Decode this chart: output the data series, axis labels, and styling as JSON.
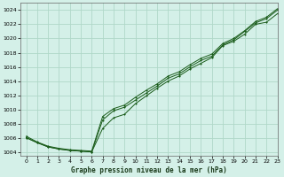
{
  "title": "Graphe pression niveau de la mer (hPa)",
  "bg_color": "#d4f0e8",
  "grid_color": "#b0d8c8",
  "line_color": "#1a5c1a",
  "marker_color": "#1a5c1a",
  "xlim": [
    -0.5,
    23
  ],
  "ylim": [
    1003.5,
    1025.0
  ],
  "xticks": [
    0,
    1,
    2,
    3,
    4,
    5,
    6,
    7,
    8,
    9,
    10,
    11,
    12,
    13,
    14,
    15,
    16,
    17,
    18,
    19,
    20,
    21,
    22,
    23
  ],
  "yticks": [
    1004,
    1006,
    1008,
    1010,
    1012,
    1014,
    1016,
    1018,
    1020,
    1022,
    1024
  ],
  "series1_x": [
    0,
    1,
    2,
    3,
    4,
    5,
    6,
    7,
    8,
    9,
    10,
    11,
    12,
    13,
    14,
    15,
    16,
    17,
    18,
    19,
    20,
    21,
    22,
    23
  ],
  "series1_y": [
    1006.0,
    1005.3,
    1004.7,
    1004.4,
    1004.2,
    1004.1,
    1004.0,
    1007.3,
    1008.8,
    1009.3,
    1010.8,
    1011.9,
    1013.0,
    1014.0,
    1014.7,
    1015.7,
    1016.5,
    1017.3,
    1019.0,
    1019.6,
    1020.6,
    1022.0,
    1022.3,
    1023.5
  ],
  "series2_x": [
    0,
    1,
    2,
    3,
    4,
    5,
    6,
    7,
    8,
    9,
    10,
    11,
    12,
    13,
    14,
    15,
    16,
    17,
    18,
    19,
    20,
    21,
    22,
    23
  ],
  "series2_y": [
    1006.0,
    1005.3,
    1004.7,
    1004.4,
    1004.2,
    1004.1,
    1004.0,
    1008.5,
    1009.8,
    1010.3,
    1011.3,
    1012.3,
    1013.3,
    1014.4,
    1015.0,
    1016.0,
    1016.9,
    1017.5,
    1019.1,
    1019.8,
    1021.0,
    1022.2,
    1022.8,
    1024.0
  ],
  "series3_x": [
    0,
    1,
    2,
    3,
    4,
    5,
    6,
    7,
    8,
    9,
    10,
    11,
    12,
    13,
    14,
    15,
    16,
    17,
    18,
    19,
    20,
    21,
    22,
    23
  ],
  "series3_y": [
    1006.2,
    1005.4,
    1004.8,
    1004.5,
    1004.3,
    1004.2,
    1004.1,
    1009.0,
    1010.1,
    1010.6,
    1011.7,
    1012.7,
    1013.6,
    1014.7,
    1015.3,
    1016.3,
    1017.2,
    1017.8,
    1019.3,
    1020.0,
    1021.1,
    1022.4,
    1023.0,
    1024.2
  ]
}
